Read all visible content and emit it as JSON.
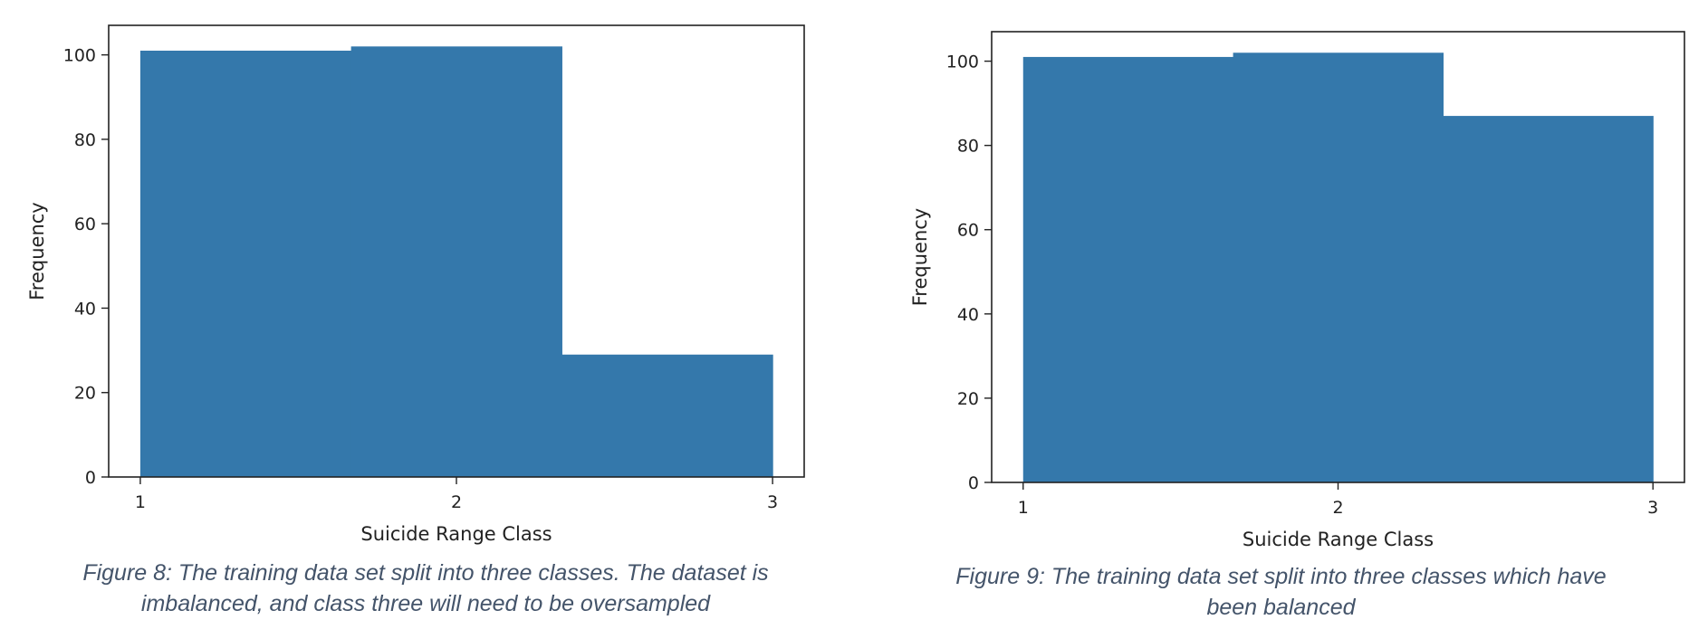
{
  "chart_data": [
    {
      "type": "bar",
      "categories": [
        "1",
        "2",
        "3"
      ],
      "values": [
        101,
        102,
        29
      ],
      "xlabel": "Suicide Range Class",
      "ylabel": "Frequency",
      "ylim": [
        0,
        107
      ],
      "yticks": [
        0,
        20,
        40,
        60,
        80,
        100
      ],
      "xticks": [
        1,
        2,
        3
      ],
      "bar_color": "#3478ab",
      "grid": false
    },
    {
      "type": "bar",
      "categories": [
        "1",
        "2",
        "3"
      ],
      "values": [
        101,
        102,
        87
      ],
      "xlabel": "Suicide Range Class",
      "ylabel": "Frequency",
      "ylim": [
        0,
        107
      ],
      "yticks": [
        0,
        20,
        40,
        60,
        80,
        100
      ],
      "xticks": [
        1,
        2,
        3
      ],
      "bar_color": "#3478ab",
      "grid": false
    }
  ],
  "captions": [
    {
      "line1": "Figure 8: The training data set split into three classes. The dataset is",
      "line2": "imbalanced, and class three will need to be oversampled"
    },
    {
      "line1": "Figure 9: The training data set split into three classes which have",
      "line2": "been balanced"
    }
  ]
}
